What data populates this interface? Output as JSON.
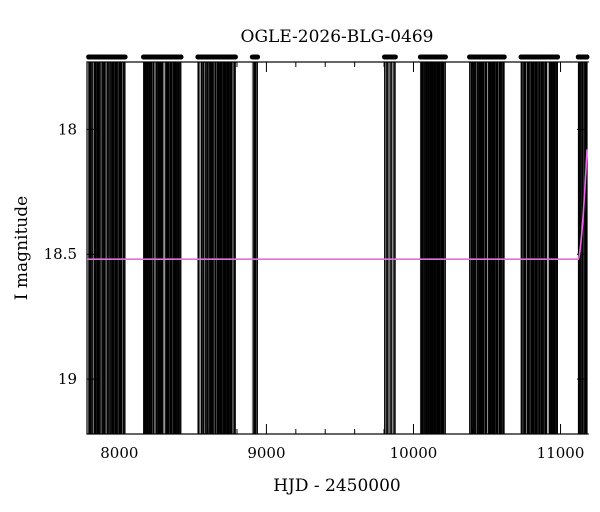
{
  "chart_data": {
    "type": "scatter",
    "title": "OGLE-2026-BLG-0469",
    "xlabel": "HJD - 2450000",
    "ylabel": "I magnitude",
    "xlim": [
      7780,
      11180
    ],
    "ylim": [
      19.22,
      17.73
    ],
    "y_inverted": true,
    "grid": false,
    "x_ticks": [
      8000,
      9000,
      10000,
      11000
    ],
    "x_tick_labels": [
      "8000",
      "9000",
      "10000",
      "11000"
    ],
    "y_ticks": [
      18,
      18.5,
      19
    ],
    "y_tick_labels": [
      "18",
      "18.5",
      "19"
    ],
    "colors": {
      "points": "#000000",
      "model": "#ee66ee"
    },
    "model_line": {
      "baseline_mag": 18.52,
      "rise_start": 11120,
      "end_mag": 18.08
    },
    "seasons": [
      {
        "x_start": 7790,
        "x_end": 8040,
        "median_mag": 18.51,
        "spread": 0.1,
        "err": 0.09,
        "n": 160
      },
      {
        "x_start": 8160,
        "x_end": 8420,
        "median_mag": 18.52,
        "spread": 0.1,
        "err": 0.09,
        "n": 160
      },
      {
        "x_start": 8530,
        "x_end": 8790,
        "median_mag": 18.53,
        "spread": 0.11,
        "err": 0.1,
        "n": 160
      },
      {
        "x_start": 8900,
        "x_end": 8940,
        "median_mag": 18.52,
        "spread": 0.06,
        "err": 0.06,
        "n": 16
      },
      {
        "x_start": 9800,
        "x_end": 9880,
        "median_mag": 18.53,
        "spread": 0.08,
        "err": 0.07,
        "n": 22
      },
      {
        "x_start": 10040,
        "x_end": 10220,
        "median_mag": 18.52,
        "spread": 0.1,
        "err": 0.09,
        "n": 130
      },
      {
        "x_start": 10380,
        "x_end": 10620,
        "median_mag": 18.55,
        "spread": 0.12,
        "err": 0.11,
        "n": 160
      },
      {
        "x_start": 10730,
        "x_end": 10980,
        "median_mag": 18.53,
        "spread": 0.11,
        "err": 0.1,
        "n": 160
      },
      {
        "x_start": 11120,
        "x_end": 11180,
        "median_mag": 18.35,
        "spread": 0.12,
        "err": 0.08,
        "n": 45
      }
    ]
  }
}
